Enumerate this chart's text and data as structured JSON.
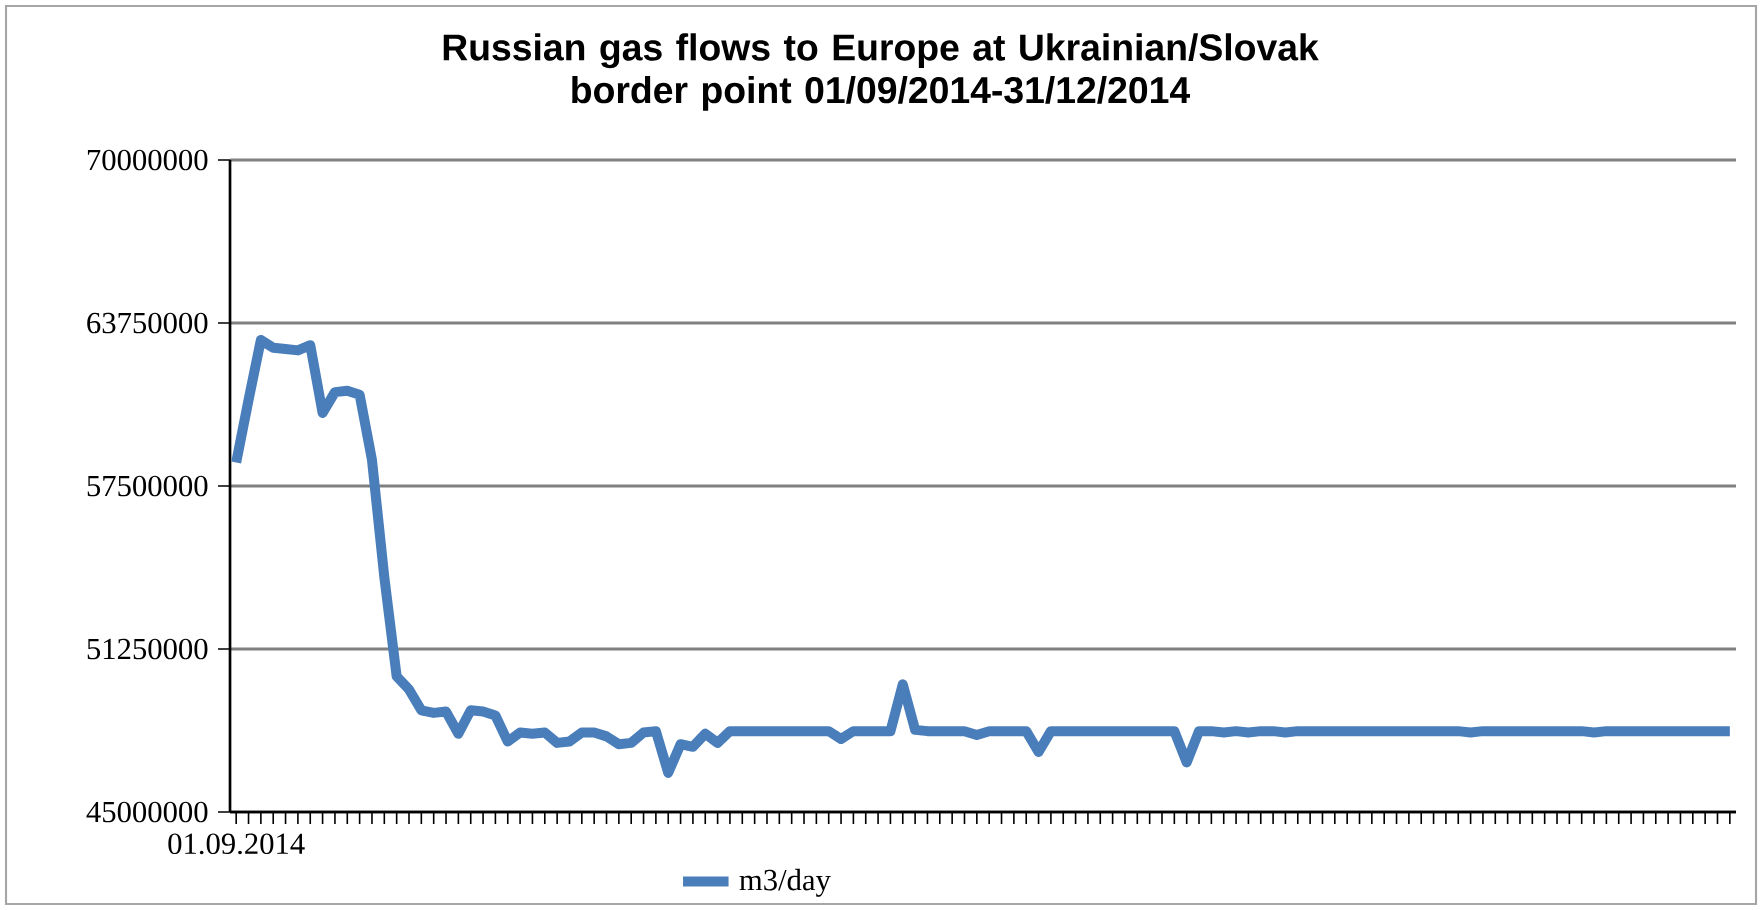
{
  "chart_data": {
    "type": "line",
    "title": "Russian gas flows to Europe at Ukrainian/Slovak border point 01/09/2014-31/12/2014",
    "categories": [
      "01.09.2014",
      null,
      null,
      null,
      null,
      null,
      null,
      null,
      null,
      null,
      null,
      null,
      null,
      null,
      null,
      null,
      null,
      null,
      null,
      null,
      null,
      null,
      null,
      null,
      null,
      null,
      null,
      null,
      null,
      null,
      null,
      null,
      null,
      null,
      null,
      null,
      null,
      null,
      null,
      null,
      null,
      null,
      null,
      null,
      null,
      null,
      null,
      null,
      null,
      null,
      null,
      null,
      null,
      null,
      null,
      null,
      null,
      null,
      null,
      null,
      null,
      null,
      null,
      null,
      null,
      null,
      null,
      null,
      null,
      null,
      null,
      null,
      null,
      null,
      null,
      null,
      null,
      null,
      null,
      null,
      null,
      null,
      null,
      null,
      null,
      null,
      null,
      null,
      null,
      null,
      null,
      null,
      null,
      null,
      null,
      null,
      null,
      null,
      null,
      null,
      null,
      null,
      null,
      null,
      null,
      null,
      null,
      null,
      null,
      null,
      null,
      null,
      null,
      null,
      null,
      null,
      null,
      null,
      null,
      null,
      null,
      null
    ],
    "series": [
      {
        "name": "m3/day",
        "color": "#4a7ebb",
        "values": [
          58400000,
          60800000,
          63100000,
          62800000,
          62750000,
          62700000,
          62900000,
          60300000,
          61100000,
          61150000,
          61000000,
          58500000,
          54000000,
          50200000,
          49700000,
          48900000,
          48800000,
          48850000,
          48000000,
          48900000,
          48850000,
          48700000,
          47700000,
          48050000,
          48000000,
          48050000,
          47650000,
          47700000,
          48050000,
          48050000,
          47900000,
          47600000,
          47650000,
          48050000,
          48100000,
          46500000,
          47600000,
          47500000,
          48000000,
          47650000,
          48100000,
          48100000,
          48100000,
          48100000,
          48100000,
          48100000,
          48100000,
          48100000,
          48100000,
          47800000,
          48100000,
          48100000,
          48100000,
          48100000,
          49900000,
          48150000,
          48100000,
          48100000,
          48100000,
          48100000,
          47950000,
          48100000,
          48100000,
          48100000,
          48100000,
          47300000,
          48100000,
          48100000,
          48100000,
          48100000,
          48100000,
          48100000,
          48100000,
          48100000,
          48100000,
          48100000,
          48100000,
          46900000,
          48100000,
          48100000,
          48050000,
          48100000,
          48050000,
          48100000,
          48100000,
          48050000,
          48100000,
          48100000,
          48100000,
          48100000,
          48100000,
          48100000,
          48100000,
          48100000,
          48100000,
          48100000,
          48100000,
          48100000,
          48100000,
          48100000,
          48050000,
          48100000,
          48100000,
          48100000,
          48100000,
          48100000,
          48100000,
          48100000,
          48100000,
          48100000,
          48050000,
          48100000,
          48100000,
          48100000,
          48100000,
          48100000,
          48100000,
          48100000,
          48100000,
          48100000,
          48100000,
          48100000
        ]
      }
    ],
    "ylim": [
      45000000,
      70000000
    ],
    "yticks": [
      45000000,
      51250000,
      57500000,
      63750000,
      70000000
    ],
    "grid": "y",
    "legend": "bottom",
    "line_style": "solid"
  }
}
